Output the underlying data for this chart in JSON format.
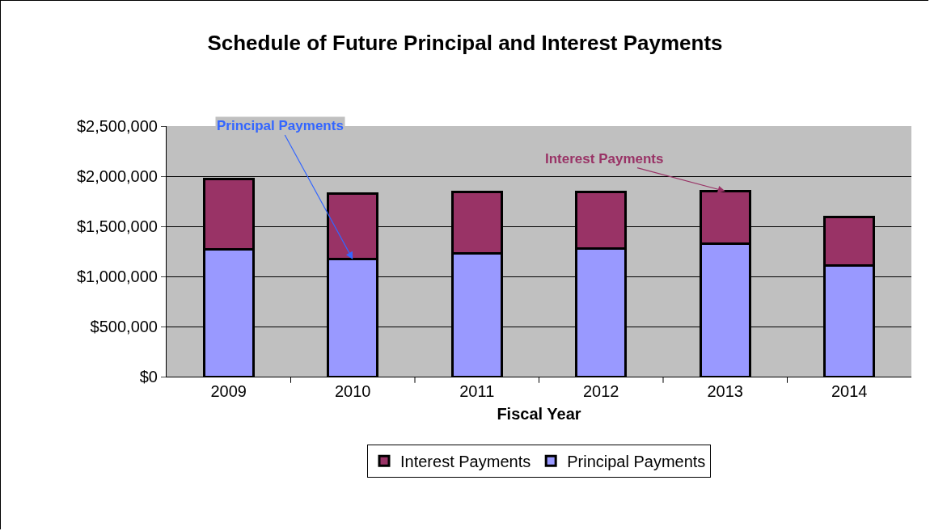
{
  "chart_data": {
    "type": "bar",
    "title": "Schedule of Future Principal and Interest Payments",
    "xlabel": "Fiscal Year",
    "categories": [
      "2009",
      "2010",
      "2011",
      "2012",
      "2013",
      "2014"
    ],
    "stacked": true,
    "series": [
      {
        "name": "Principal Payments",
        "color": "#9999ff",
        "values": [
          1270000,
          1170000,
          1230000,
          1280000,
          1330000,
          1110000
        ]
      },
      {
        "name": "Interest Payments",
        "color": "#993366",
        "values": [
          700000,
          660000,
          610000,
          560000,
          520000,
          480000
        ]
      }
    ],
    "ylim": [
      0,
      2500000
    ],
    "yticks": [
      {
        "value": 0,
        "label": "$0"
      },
      {
        "value": 500000,
        "label": "$500,000"
      },
      {
        "value": 1000000,
        "label": "$1,000,000"
      },
      {
        "value": 1500000,
        "label": "$1,500,000"
      },
      {
        "value": 2000000,
        "label": "$2,000,000"
      },
      {
        "value": 2500000,
        "label": "$2,500,000"
      }
    ],
    "grid": "y",
    "legend": "bottom",
    "annotations": [
      {
        "text": "Principal Payments",
        "x": "2010",
        "y": 1170000
      },
      {
        "text": "Interest Payments",
        "x": "2013",
        "y": 1850000
      }
    ]
  }
}
